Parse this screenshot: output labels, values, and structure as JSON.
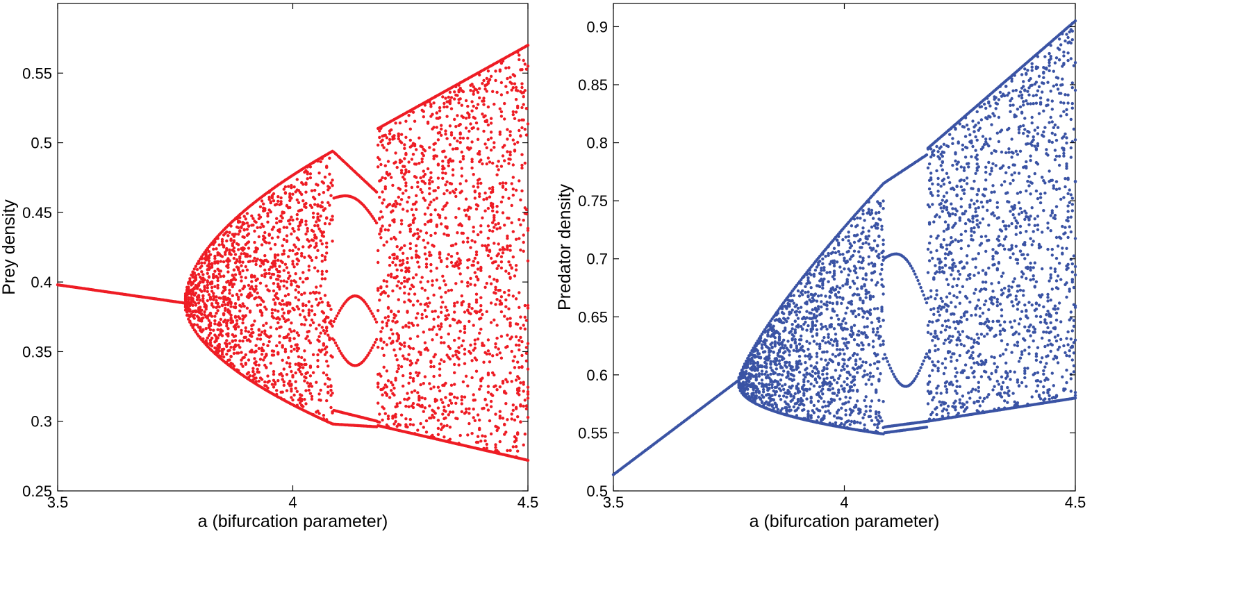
{
  "chart_data": [
    {
      "type": "scatter",
      "title": "",
      "xlabel": "a (bifurcation parameter)",
      "ylabel": "Prey density",
      "xlim": [
        3.5,
        4.5
      ],
      "ylim": [
        0.25,
        0.6
      ],
      "xticks": [
        "3.5",
        "4",
        "4.5"
      ],
      "yticks": [
        "0.25",
        "0.3",
        "0.35",
        "0.4",
        "0.45",
        "0.5",
        "0.55"
      ],
      "color": "#ee1c24",
      "grid": false,
      "legend": "none",
      "series": [
        {
          "values_description_points": [
            [
              3.5,
              0.398
            ],
            [
              3.6,
              0.393
            ],
            [
              3.7,
              0.389
            ],
            [
              3.77,
              0.385
            ],
            [
              3.8,
              0.41
            ],
            [
              3.8,
              0.355
            ],
            [
              3.85,
              0.43
            ],
            [
              3.85,
              0.33
            ],
            [
              3.9,
              0.455
            ],
            [
              3.9,
              0.318
            ],
            [
              3.95,
              0.47
            ],
            [
              3.95,
              0.31
            ],
            [
              4.0,
              0.48
            ],
            [
              4.0,
              0.305
            ],
            [
              4.05,
              0.49
            ],
            [
              4.05,
              0.3
            ],
            [
              4.08,
              0.494
            ],
            [
              4.08,
              0.298
            ],
            [
              4.1,
              0.47
            ],
            [
              4.1,
              0.3
            ],
            [
              4.15,
              0.45
            ],
            [
              4.15,
              0.3
            ],
            [
              4.18,
              0.46
            ],
            [
              4.18,
              0.295
            ],
            [
              4.2,
              0.51
            ],
            [
              4.2,
              0.29
            ],
            [
              4.3,
              0.525
            ],
            [
              4.3,
              0.285
            ],
            [
              4.4,
              0.545
            ],
            [
              4.4,
              0.28
            ],
            [
              4.45,
              0.56
            ],
            [
              4.45,
              0.275
            ],
            [
              4.5,
              0.585
            ],
            [
              4.5,
              0.265
            ]
          ]
        }
      ]
    },
    {
      "type": "scatter",
      "title": "",
      "xlabel": "a (bifurcation parameter)",
      "ylabel": "Predator density",
      "xlim": [
        3.5,
        4.5
      ],
      "ylim": [
        0.5,
        0.92
      ],
      "xticks": [
        "3.5",
        "4",
        "4.5"
      ],
      "yticks": [
        "0.5",
        "0.55",
        "0.6",
        "0.65",
        "0.7",
        "0.75",
        "0.8",
        "0.85",
        "0.9"
      ],
      "color": "#3a53a4",
      "grid": false,
      "legend": "none",
      "series": [
        {
          "values_description_points": [
            [
              3.5,
              0.514
            ],
            [
              3.6,
              0.545
            ],
            [
              3.7,
              0.575
            ],
            [
              3.77,
              0.595
            ],
            [
              3.8,
              0.62
            ],
            [
              3.8,
              0.57
            ],
            [
              3.85,
              0.655
            ],
            [
              3.85,
              0.555
            ],
            [
              3.9,
              0.68
            ],
            [
              3.9,
              0.55
            ],
            [
              3.95,
              0.705
            ],
            [
              3.95,
              0.549
            ],
            [
              4.0,
              0.725
            ],
            [
              4.0,
              0.549
            ],
            [
              4.05,
              0.75
            ],
            [
              4.05,
              0.55
            ],
            [
              4.08,
              0.765
            ],
            [
              4.08,
              0.55
            ],
            [
              4.12,
              0.78
            ],
            [
              4.12,
              0.555
            ],
            [
              4.18,
              0.79
            ],
            [
              4.18,
              0.56
            ],
            [
              4.2,
              0.8
            ],
            [
              4.2,
              0.56
            ],
            [
              4.3,
              0.83
            ],
            [
              4.3,
              0.57
            ],
            [
              4.4,
              0.865
            ],
            [
              4.4,
              0.58
            ],
            [
              4.45,
              0.88
            ],
            [
              4.45,
              0.58
            ],
            [
              4.5,
              0.91
            ],
            [
              4.5,
              0.56
            ]
          ]
        }
      ]
    }
  ]
}
